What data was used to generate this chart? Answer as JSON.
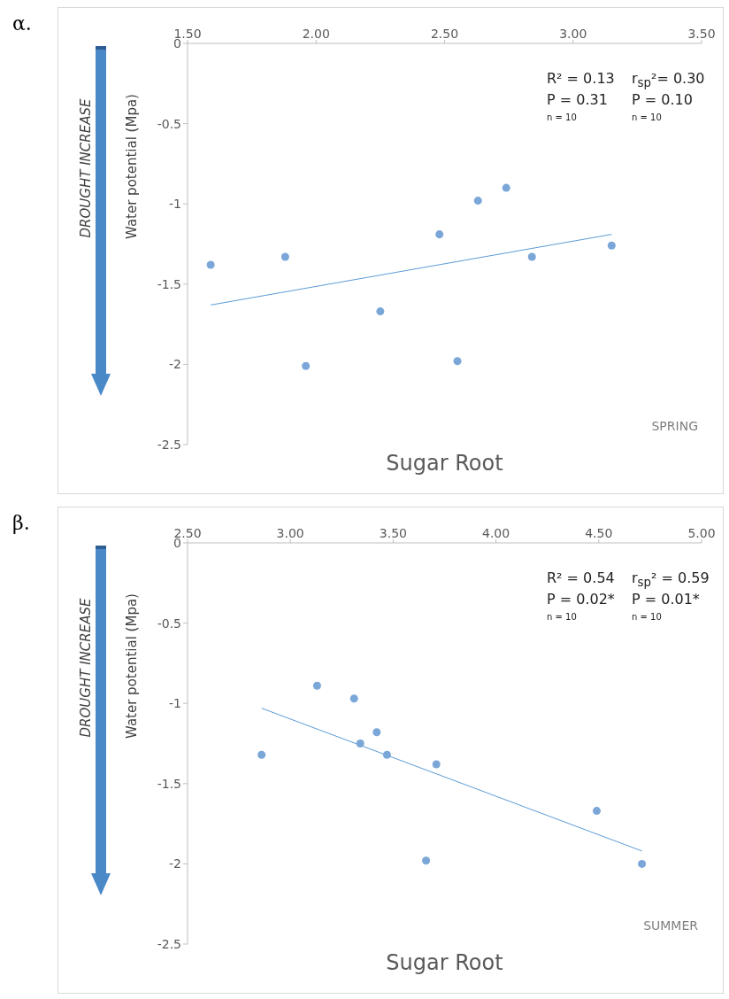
{
  "chart_data": [
    {
      "type": "scatter",
      "xlabel": "Sugar Root",
      "ylabel": "Water potential (Mpa)",
      "xlim": [
        1.5,
        3.5
      ],
      "xticks": [
        {
          "value": 1.5,
          "label": "1.50"
        },
        {
          "value": 2,
          "label": "2.00"
        },
        {
          "value": 2.5,
          "label": "2.50"
        },
        {
          "value": 3,
          "label": "3.00"
        },
        {
          "value": 3.5,
          "label": "3.50"
        }
      ],
      "ylim": [
        -2.5,
        0
      ],
      "yticks": [
        0,
        -0.5,
        -1,
        -1.5,
        -2,
        -2.5
      ],
      "grid": false,
      "series": [
        {
          "type": "scatter",
          "marker": "circle",
          "color": "#7aa7d8",
          "x": [
            1.59,
            1.88,
            1.96,
            2.25,
            2.48,
            2.55,
            2.63,
            2.74,
            2.84,
            3.15
          ],
          "values": [
            -1.38,
            -1.33,
            -2.01,
            -1.67,
            -1.19,
            -1.98,
            -0.98,
            -0.9,
            -1.33,
            -1.26
          ]
        },
        {
          "type": "line",
          "marker": "none",
          "color": "#5b9bd5",
          "x": [
            1.59,
            3.15
          ],
          "values": [
            -1.63,
            -1.19
          ]
        }
      ],
      "annotations": [
        "α.",
        "R² = 0.13",
        "P =  0.31",
        "n = 10",
        "r$_{sp}$²= 0.30",
        "P = 0.10",
        "n = 10",
        "DROUGHT INCREASE",
        "SPRING"
      ]
    },
    {
      "type": "scatter",
      "xlabel": "Sugar Root",
      "ylabel": "Water potential (Mpa)",
      "xlim": [
        2.5,
        5
      ],
      "xticks": [
        {
          "value": 2.5,
          "label": "2.50"
        },
        {
          "value": 3,
          "label": "3.00"
        },
        {
          "value": 3.5,
          "label": "3.50"
        },
        {
          "value": 4,
          "label": "4.00"
        },
        {
          "value": 4.5,
          "label": "4.50"
        },
        {
          "value": 5,
          "label": "5.00"
        }
      ],
      "ylim": [
        -2.5,
        0
      ],
      "yticks": [
        0,
        -0.5,
        -1,
        -1.5,
        -2,
        -2.5
      ],
      "grid": false,
      "series": [
        {
          "type": "scatter",
          "marker": "circle",
          "color": "#7aa7d8",
          "x": [
            2.86,
            3.13,
            3.31,
            3.34,
            3.42,
            3.47,
            3.66,
            3.71,
            4.49,
            4.71
          ],
          "values": [
            -1.32,
            -0.89,
            -0.97,
            -1.25,
            -1.18,
            -1.32,
            -1.98,
            -1.38,
            -1.67,
            -2.0
          ]
        },
        {
          "type": "line",
          "marker": "none",
          "color": "#5b9bd5",
          "x": [
            2.86,
            4.71
          ],
          "values": [
            -1.03,
            -1.92
          ]
        }
      ],
      "annotations": [
        "β.",
        "R² = 0.54",
        "P = 0.02*",
        "n = 10",
        "r$_{sp}$² = 0.59",
        "P = 0.01*",
        "n = 10",
        "DROUGHT INCREASE",
        "SUMMER"
      ]
    }
  ]
}
